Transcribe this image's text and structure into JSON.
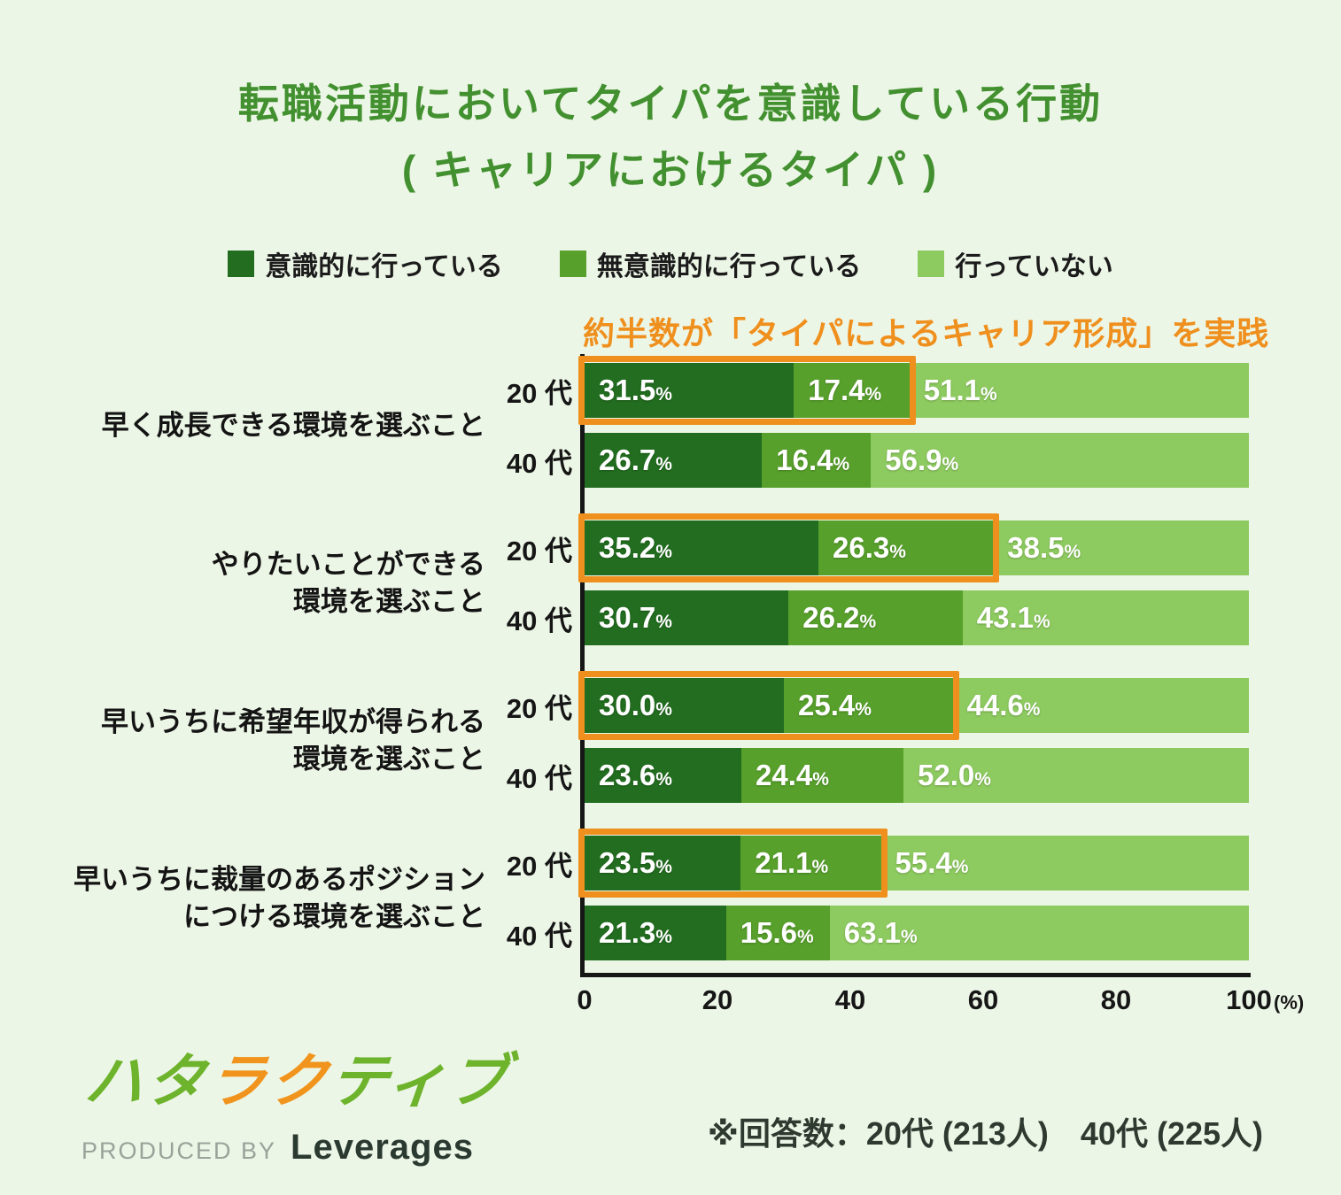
{
  "title": {
    "line1": "転職活動においてタイパを意識している行動",
    "line2": "( キャリアにおけるタイパ )"
  },
  "annotation": {
    "prefix": "約半数が",
    "highlight": "「タイパによるキャリア形成」",
    "suffix": "を実践"
  },
  "colors": {
    "background": "#ecf6e6",
    "title_green": "#42902f",
    "accent_orange": "#ef8f1d",
    "axis_black": "#161616",
    "logo_green": "#6db32c",
    "logo_orange": "#f0941d"
  },
  "chart_data": {
    "type": "bar",
    "stacked": true,
    "orientation": "horizontal",
    "unit": "%",
    "xlim": [
      0,
      100
    ],
    "x_ticks": [
      0,
      20,
      40,
      60,
      80,
      100
    ],
    "x_tick_suffix": "(%)",
    "legend_position": "top",
    "series": [
      {
        "name": "意識的に行っている",
        "color": "#226d1f"
      },
      {
        "name": "無意識的に行っている",
        "color": "#57a02b"
      },
      {
        "name": "行っていない",
        "color": "#8dca5f"
      }
    ],
    "groups": [
      {
        "category": "早く成長できる環境を選ぶこと",
        "category_lines": [
          "早く成長できる環境を選ぶこと"
        ],
        "rows": [
          {
            "age": "20 代",
            "values": [
              31.5,
              17.4,
              51.1
            ],
            "highlighted": true
          },
          {
            "age": "40 代",
            "values": [
              26.7,
              16.4,
              56.9
            ],
            "highlighted": false
          }
        ]
      },
      {
        "category": "やりたいことができる環境を選ぶこと",
        "category_lines": [
          "やりたいことができる",
          "環境を選ぶこと"
        ],
        "rows": [
          {
            "age": "20 代",
            "values": [
              35.2,
              26.3,
              38.5
            ],
            "highlighted": true
          },
          {
            "age": "40 代",
            "values": [
              30.7,
              26.2,
              43.1
            ],
            "highlighted": false
          }
        ]
      },
      {
        "category": "早いうちに希望年収が得られる環境を選ぶこと",
        "category_lines": [
          "早いうちに希望年収が得られる",
          "環境を選ぶこと"
        ],
        "rows": [
          {
            "age": "20 代",
            "values": [
              30.0,
              25.4,
              44.6
            ],
            "highlighted": true
          },
          {
            "age": "40 代",
            "values": [
              23.6,
              24.4,
              52.0
            ],
            "highlighted": false
          }
        ]
      },
      {
        "category": "早いうちに裁量のあるポジションにつける環境を選ぶこと",
        "category_lines": [
          "早いうちに裁量のあるポジション",
          "につける環境を選ぶこと"
        ],
        "rows": [
          {
            "age": "20 代",
            "values": [
              23.5,
              21.1,
              55.4
            ],
            "highlighted": true
          },
          {
            "age": "40 代",
            "values": [
              21.3,
              15.6,
              63.1
            ],
            "highlighted": false
          }
        ]
      }
    ]
  },
  "footer": {
    "logo_chars": [
      {
        "ch": "ハ",
        "color": "logo_green"
      },
      {
        "ch": "タ",
        "color": "logo_green"
      },
      {
        "ch": "ラ",
        "color": "logo_orange"
      },
      {
        "ch": "ク",
        "color": "logo_orange"
      },
      {
        "ch": "テ",
        "color": "logo_green"
      },
      {
        "ch": "ィ",
        "color": "logo_green"
      },
      {
        "ch": "ブ",
        "color": "logo_green"
      }
    ],
    "produced_by": "PRODUCED BY",
    "company": "Leverages",
    "note": "※回答数：20代 (213人)　40代 (225人)"
  }
}
